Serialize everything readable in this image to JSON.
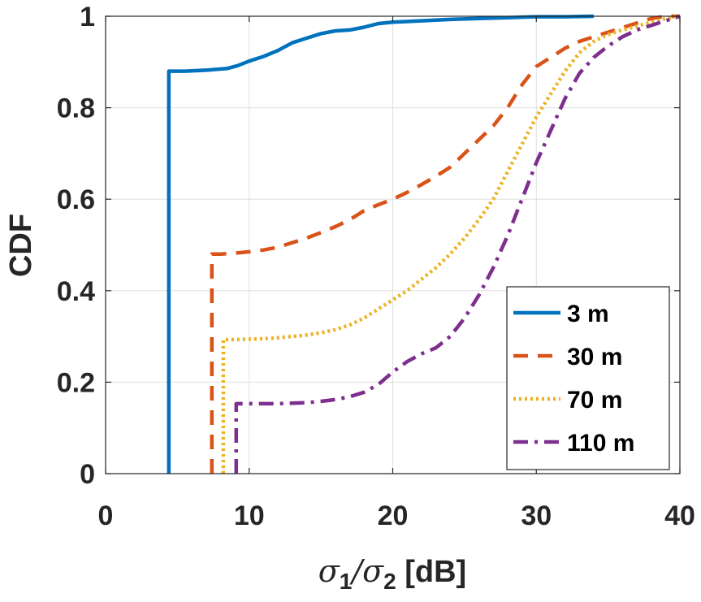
{
  "chart_data": {
    "type": "line",
    "title": "",
    "ylabel": "CDF",
    "xlabel": {
      "part1": "σ",
      "sub1": "1",
      "slash": "/",
      "part2": "σ",
      "sub2": "2",
      "unit": " [dB]"
    },
    "xlim": [
      0,
      40
    ],
    "ylim": [
      0,
      1
    ],
    "xticks": [
      0,
      10,
      20,
      30,
      40
    ],
    "xtick_labels": [
      "0",
      "10",
      "20",
      "30",
      "40"
    ],
    "yticks": [
      0,
      0.2,
      0.4,
      0.6,
      0.8,
      1
    ],
    "ytick_labels": [
      "0",
      "0.2",
      "0.4",
      "0.6",
      "0.8",
      "1"
    ],
    "grid": true,
    "legend_position": "bottom-right",
    "series": [
      {
        "name": "3 m",
        "color": "#0072BD",
        "style": "solid",
        "points": [
          [
            4.4,
            0
          ],
          [
            4.4,
            0.88
          ],
          [
            5.5,
            0.88
          ],
          [
            7,
            0.882
          ],
          [
            8.5,
            0.886
          ],
          [
            9.2,
            0.892
          ],
          [
            10,
            0.902
          ],
          [
            11,
            0.912
          ],
          [
            12,
            0.925
          ],
          [
            13,
            0.942
          ],
          [
            14,
            0.952
          ],
          [
            15,
            0.962
          ],
          [
            16,
            0.968
          ],
          [
            17,
            0.97
          ],
          [
            18,
            0.976
          ],
          [
            19,
            0.984
          ],
          [
            20,
            0.987
          ],
          [
            22,
            0.99
          ],
          [
            24,
            0.993
          ],
          [
            26,
            0.995
          ],
          [
            28,
            0.997
          ],
          [
            30,
            0.999
          ],
          [
            32,
            0.999
          ],
          [
            34,
            1.0
          ]
        ]
      },
      {
        "name": "30 m",
        "color": "#D95319",
        "style": "dashed",
        "points": [
          [
            7.4,
            0
          ],
          [
            7.4,
            0.48
          ],
          [
            8,
            0.48
          ],
          [
            9,
            0.482
          ],
          [
            10,
            0.485
          ],
          [
            11,
            0.489
          ],
          [
            12,
            0.495
          ],
          [
            13,
            0.505
          ],
          [
            14,
            0.515
          ],
          [
            15,
            0.527
          ],
          [
            16,
            0.54
          ],
          [
            17,
            0.555
          ],
          [
            18,
            0.575
          ],
          [
            19,
            0.588
          ],
          [
            20,
            0.6
          ],
          [
            21,
            0.615
          ],
          [
            22,
            0.632
          ],
          [
            23,
            0.65
          ],
          [
            24,
            0.67
          ],
          [
            25,
            0.7
          ],
          [
            26,
            0.73
          ],
          [
            27,
            0.76
          ],
          [
            28,
            0.8
          ],
          [
            29,
            0.85
          ],
          [
            30,
            0.89
          ],
          [
            31,
            0.91
          ],
          [
            32,
            0.93
          ],
          [
            33,
            0.945
          ],
          [
            34,
            0.955
          ],
          [
            35,
            0.965
          ],
          [
            36,
            0.975
          ],
          [
            37,
            0.985
          ],
          [
            38,
            0.995
          ],
          [
            39,
            1.0
          ],
          [
            40,
            1.0
          ]
        ]
      },
      {
        "name": "70 m",
        "color": "#EDB120",
        "style": "dotted",
        "points": [
          [
            8.2,
            0
          ],
          [
            8.2,
            0.293
          ],
          [
            9,
            0.293
          ],
          [
            10,
            0.294
          ],
          [
            11,
            0.295
          ],
          [
            12,
            0.297
          ],
          [
            13,
            0.3
          ],
          [
            14,
            0.303
          ],
          [
            15,
            0.308
          ],
          [
            16,
            0.315
          ],
          [
            17,
            0.325
          ],
          [
            18,
            0.34
          ],
          [
            19,
            0.36
          ],
          [
            20,
            0.38
          ],
          [
            21,
            0.4
          ],
          [
            22,
            0.425
          ],
          [
            23,
            0.45
          ],
          [
            24,
            0.48
          ],
          [
            25,
            0.515
          ],
          [
            26,
            0.555
          ],
          [
            27,
            0.6
          ],
          [
            28,
            0.66
          ],
          [
            29,
            0.72
          ],
          [
            30,
            0.78
          ],
          [
            31,
            0.83
          ],
          [
            32,
            0.88
          ],
          [
            33,
            0.92
          ],
          [
            34,
            0.945
          ],
          [
            35,
            0.96
          ],
          [
            36,
            0.97
          ],
          [
            37,
            0.978
          ],
          [
            38,
            0.987
          ],
          [
            39,
            0.995
          ],
          [
            40,
            1.0
          ]
        ]
      },
      {
        "name": "110 m",
        "color": "#7E2F8E",
        "style": "dashdot",
        "points": [
          [
            9.1,
            0
          ],
          [
            9.1,
            0.153
          ],
          [
            10,
            0.153
          ],
          [
            11,
            0.153
          ],
          [
            12,
            0.153
          ],
          [
            13,
            0.154
          ],
          [
            14,
            0.155
          ],
          [
            15,
            0.158
          ],
          [
            16,
            0.162
          ],
          [
            17,
            0.168
          ],
          [
            18,
            0.178
          ],
          [
            19,
            0.195
          ],
          [
            20,
            0.222
          ],
          [
            21,
            0.245
          ],
          [
            22,
            0.262
          ],
          [
            23,
            0.275
          ],
          [
            24,
            0.3
          ],
          [
            25,
            0.34
          ],
          [
            26,
            0.39
          ],
          [
            27,
            0.45
          ],
          [
            28,
            0.52
          ],
          [
            29,
            0.6
          ],
          [
            30,
            0.68
          ],
          [
            31,
            0.75
          ],
          [
            32,
            0.82
          ],
          [
            33,
            0.875
          ],
          [
            34,
            0.91
          ],
          [
            35,
            0.935
          ],
          [
            36,
            0.955
          ],
          [
            37,
            0.97
          ],
          [
            38,
            0.98
          ],
          [
            39,
            0.99
          ],
          [
            40,
            1.0
          ]
        ]
      }
    ]
  }
}
